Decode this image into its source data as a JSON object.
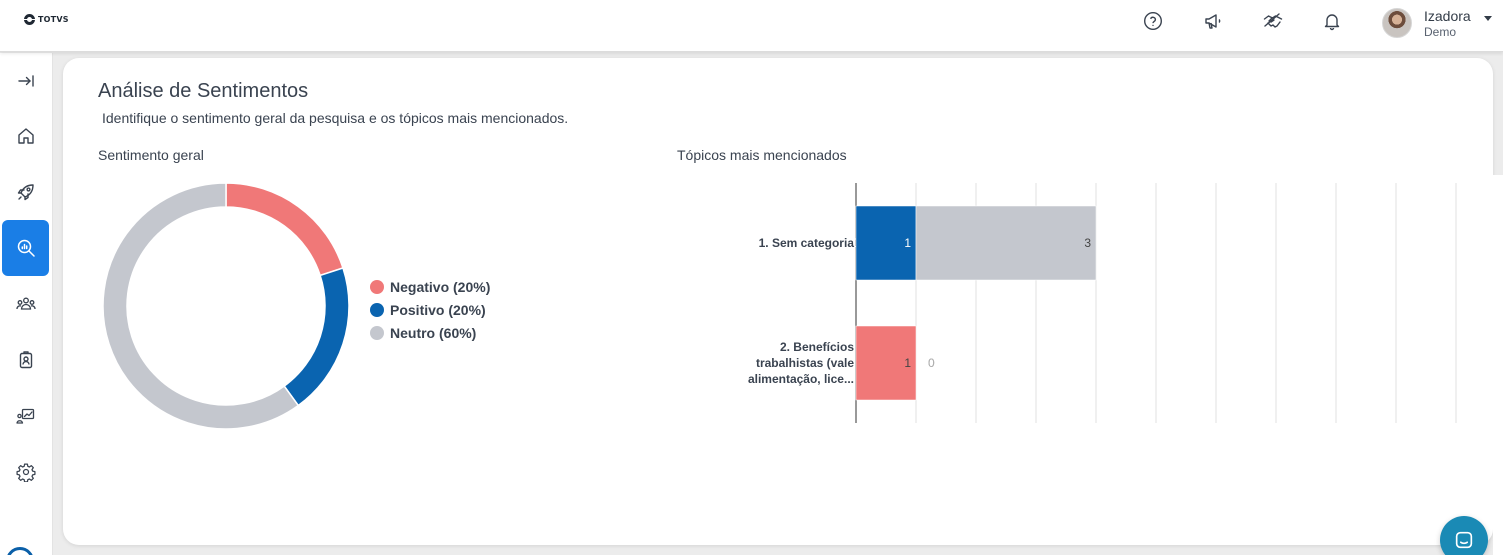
{
  "brand": {
    "logo_text": "TOTVS"
  },
  "header": {
    "icons": [
      "help-circle-icon",
      "megaphone-icon",
      "handshake-icon",
      "bell-icon"
    ],
    "user": {
      "name": "Izadora",
      "role": "Demo"
    }
  },
  "sidebar": {
    "items": [
      {
        "icon": "expand-sidebar-icon",
        "active": false
      },
      {
        "icon": "home-icon",
        "active": false
      },
      {
        "icon": "rocket-icon",
        "active": false
      },
      {
        "icon": "analytics-search-icon",
        "active": true
      },
      {
        "icon": "people-icon",
        "active": false
      },
      {
        "icon": "badge-icon",
        "active": false
      },
      {
        "icon": "presentation-chart-icon",
        "active": false
      },
      {
        "icon": "gear-icon",
        "active": false
      }
    ]
  },
  "main": {
    "title": "Análise de Sentimentos",
    "subtitle": "Identifique o sentimento geral da pesquisa e os tópicos mais mencionados.",
    "sentiment_section_title": "Sentimento geral",
    "topics_section_title": "Tópicos mais mencionados"
  },
  "colors": {
    "negative": "#f07878",
    "positive": "#0a64b0",
    "neutral": "#c4c7ce",
    "accent": "#1a7ee6",
    "chat": "#1a8ab5"
  },
  "chart_data": [
    {
      "type": "pie",
      "title": "Sentimento geral",
      "donut": true,
      "legend_position": "right",
      "slices": [
        {
          "label": "Negativo (20%)",
          "value": 20,
          "color": "#f07878"
        },
        {
          "label": "Positivo (20%)",
          "value": 20,
          "color": "#0a64b0"
        },
        {
          "label": "Neutro (60%)",
          "value": 60,
          "color": "#c4c7ce"
        }
      ]
    },
    {
      "type": "bar",
      "orientation": "horizontal",
      "stacked": true,
      "title": "Tópicos mais mencionados",
      "xlim": [
        0,
        10
      ],
      "grid": true,
      "categories": [
        "1. Sem categoria",
        "2. Benefícios trabalhistas (vale alimentação, lice..."
      ],
      "category_lines": [
        [
          "1. Sem categoria"
        ],
        [
          "2. Benefícios",
          "trabalhistas (vale",
          "alimentação, lice..."
        ]
      ],
      "series": [
        {
          "values": [
            0,
            1
          ],
          "color": "#f07878"
        },
        {
          "values": [
            1,
            0
          ],
          "color": "#0a64b0"
        },
        {
          "values": [
            3,
            0
          ],
          "color": "#c4c7ce"
        }
      ]
    }
  ]
}
